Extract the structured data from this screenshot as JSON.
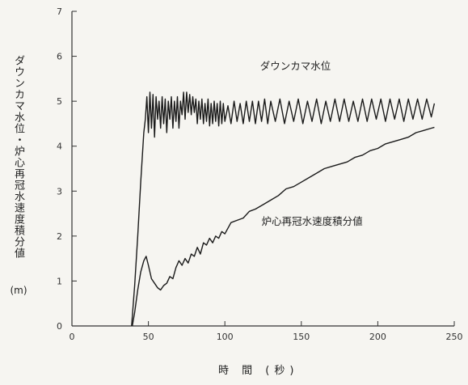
{
  "chart_data": {
    "type": "line",
    "title": "",
    "xlabel": "時 間 (秒)",
    "ylabel": "ダウンカマ水位・炉心再冠水速度積分値",
    "yunit": "(m)",
    "xlim": [
      0,
      250
    ],
    "ylim": [
      0,
      7
    ],
    "xticks": [
      "0",
      "50",
      "100",
      "150",
      "200",
      "250"
    ],
    "yticks": [
      "0",
      "1",
      "2",
      "3",
      "4",
      "5",
      "6",
      "7"
    ],
    "grid": false,
    "legend": "none",
    "series": [
      {
        "name": "ダウンカマ水位",
        "color": "#1a1a1a",
        "x": [
          39,
          41,
          43,
          45,
          47,
          48,
          49,
          50,
          51,
          52,
          53,
          54,
          55,
          56,
          57,
          58,
          59,
          60,
          61,
          62,
          63,
          64,
          65,
          66,
          67,
          68,
          69,
          70,
          71,
          72,
          73,
          74,
          75,
          76,
          77,
          78,
          79,
          80,
          81,
          82,
          83,
          84,
          85,
          86,
          87,
          88,
          89,
          90,
          91,
          92,
          93,
          94,
          95,
          96,
          97,
          98,
          99,
          100,
          102,
          104,
          106,
          108,
          110,
          112,
          114,
          116,
          118,
          120,
          122,
          124,
          126,
          128,
          130,
          133,
          136,
          139,
          142,
          145,
          148,
          151,
          154,
          157,
          160,
          163,
          166,
          169,
          172,
          175,
          178,
          181,
          184,
          187,
          190,
          193,
          196,
          199,
          202,
          205,
          208,
          211,
          214,
          217,
          220,
          223,
          226,
          229,
          232,
          235,
          237
        ],
        "y": [
          0.0,
          0.9,
          2.0,
          3.2,
          4.3,
          4.6,
          5.1,
          4.3,
          5.2,
          4.4,
          5.15,
          4.2,
          5.1,
          4.6,
          5.0,
          4.4,
          5.1,
          4.5,
          5.05,
          4.3,
          5.0,
          4.6,
          5.1,
          4.4,
          5.0,
          4.55,
          5.1,
          4.4,
          5.0,
          4.7,
          5.2,
          4.6,
          5.2,
          4.75,
          5.15,
          4.7,
          5.1,
          4.75,
          5.05,
          4.5,
          5.0,
          4.6,
          5.05,
          4.5,
          4.95,
          4.55,
          5.05,
          4.45,
          4.95,
          4.5,
          5.0,
          4.55,
          4.95,
          4.45,
          5.0,
          4.5,
          4.95,
          4.55,
          4.9,
          4.5,
          5.0,
          4.55,
          4.95,
          4.5,
          5.0,
          4.55,
          5.0,
          4.5,
          5.0,
          4.55,
          5.05,
          4.5,
          5.0,
          4.55,
          5.05,
          4.5,
          5.0,
          4.55,
          5.05,
          4.5,
          5.0,
          4.55,
          5.05,
          4.5,
          5.0,
          4.55,
          5.05,
          4.55,
          5.05,
          4.55,
          5.0,
          4.55,
          5.05,
          4.55,
          5.05,
          4.6,
          5.05,
          4.55,
          5.05,
          4.6,
          5.05,
          4.55,
          5.05,
          4.6,
          5.05,
          4.6,
          5.05,
          4.65,
          4.95
        ]
      },
      {
        "name": "炉心再冠水速度積分値",
        "color": "#1a1a1a",
        "x": [
          39.5,
          41,
          43,
          45,
          47,
          48.5,
          50,
          52,
          54,
          56,
          58,
          60,
          62,
          64,
          66,
          68,
          70,
          72,
          74,
          76,
          78,
          80,
          82,
          84,
          86,
          88,
          90,
          92,
          94,
          96,
          98,
          100,
          104,
          108,
          112,
          116,
          120,
          125,
          130,
          135,
          140,
          145,
          150,
          155,
          160,
          165,
          170,
          175,
          180,
          185,
          190,
          195,
          200,
          205,
          210,
          215,
          220,
          225,
          230,
          235,
          237
        ],
        "y": [
          0.0,
          0.3,
          0.8,
          1.2,
          1.45,
          1.55,
          1.35,
          1.05,
          0.95,
          0.85,
          0.8,
          0.9,
          0.95,
          1.1,
          1.05,
          1.3,
          1.45,
          1.35,
          1.5,
          1.4,
          1.6,
          1.55,
          1.75,
          1.6,
          1.85,
          1.8,
          1.95,
          1.85,
          2.0,
          1.95,
          2.1,
          2.05,
          2.3,
          2.35,
          2.4,
          2.55,
          2.6,
          2.7,
          2.8,
          2.9,
          3.05,
          3.1,
          3.2,
          3.3,
          3.4,
          3.5,
          3.55,
          3.6,
          3.65,
          3.75,
          3.8,
          3.9,
          3.95,
          4.05,
          4.1,
          4.15,
          4.2,
          4.3,
          4.35,
          4.4,
          4.42
        ]
      }
    ],
    "annotations": [
      {
        "text": "ダウンカマ水位",
        "x": 123,
        "y": 5.7
      },
      {
        "text": "炉心再冠水速度積分値",
        "x": 124,
        "y": 2.25
      }
    ]
  }
}
